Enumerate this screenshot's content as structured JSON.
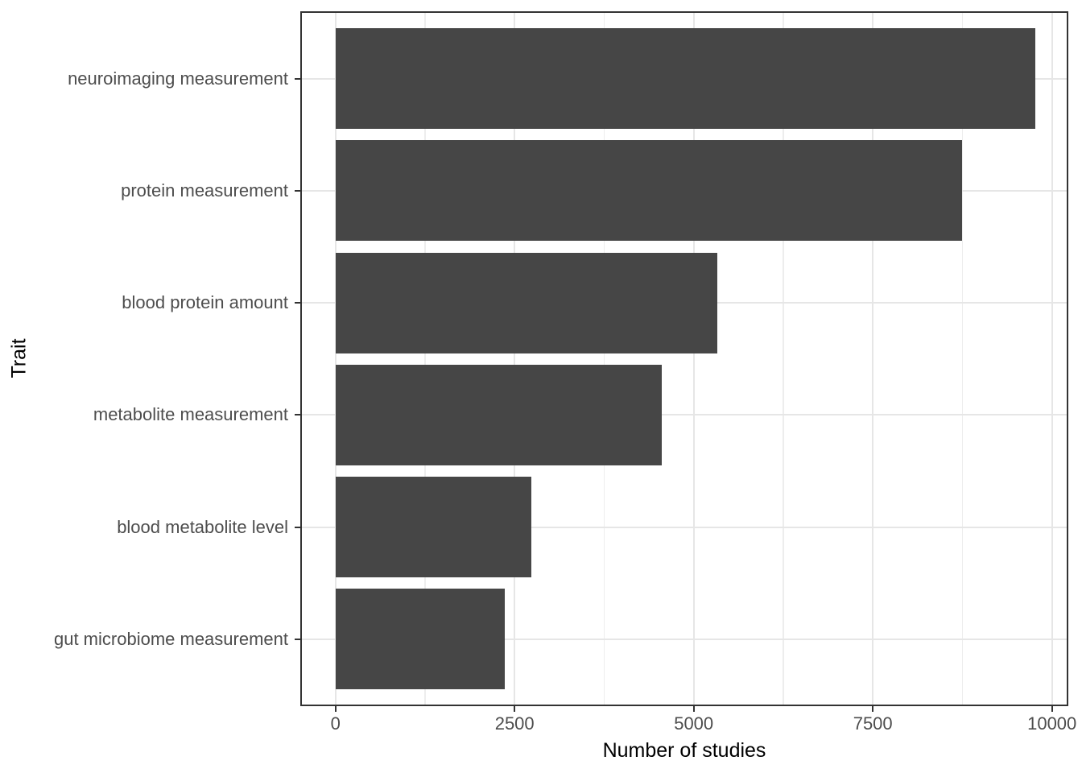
{
  "chart_data": {
    "type": "bar",
    "orientation": "horizontal",
    "title": "",
    "xlabel": "Number of studies",
    "ylabel": "Trait",
    "categories": [
      "neuroimaging measurement",
      "protein measurement",
      "blood protein amount",
      "metabolite measurement",
      "blood metabolite level",
      "gut microbiome measurement"
    ],
    "values": [
      9770,
      8740,
      5330,
      4550,
      2730,
      2360
    ],
    "x_ticks": [
      0,
      2500,
      5000,
      7500,
      10000
    ],
    "x_tick_labels": [
      "0",
      "2500",
      "5000",
      "7500",
      "10000"
    ],
    "x_minor_ticks": [
      1250,
      3750,
      6250,
      8750
    ],
    "xlim": [
      -490,
      10235
    ],
    "bar_width_fraction": 0.9,
    "grid": "vertical major+minor, horizontal major at category centers",
    "legend": "none",
    "colors": {
      "bar": "#464646",
      "panel_border": "#333333",
      "grid_major": "#E6E6E6",
      "grid_minor": "#EDEDED",
      "tick_mark": "#333333",
      "tick_label": "#4D4D4D",
      "axis_title": "#000000",
      "background": "#FFFFFF"
    }
  }
}
